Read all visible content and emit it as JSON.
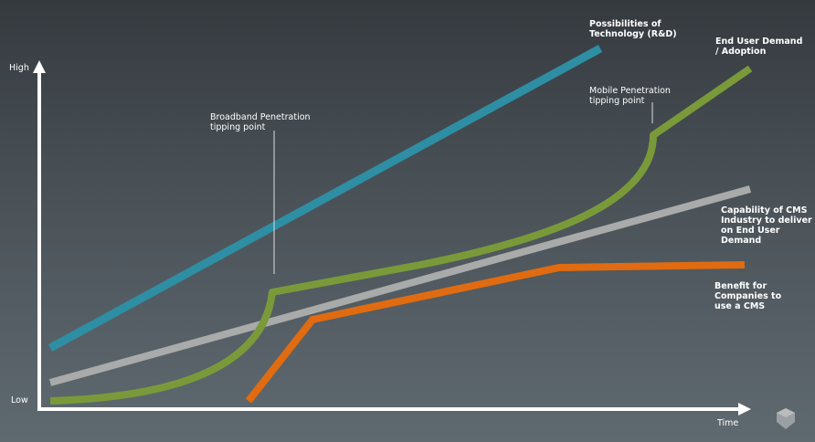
{
  "axes": {
    "y_high": "High",
    "y_low": "Low",
    "x_label": "Time"
  },
  "series": [
    {
      "label": "Possibilities of\nTechnology (R&D)",
      "color": "#2e8ea3"
    },
    {
      "label": "End User Demand\n/ Adoption",
      "color": "#7a9a3a"
    },
    {
      "label": "Capability of CMS\nIndustry to deliver\non End User Demand",
      "color": "#a9aaaa"
    },
    {
      "label": "Benefit for\nCompanies to\nuse a CMS",
      "color": "#e06b10"
    }
  ],
  "annotations": {
    "broadband": "Broadband Penetration\ntipping point",
    "mobile": "Mobile Penetration\ntipping point"
  },
  "logo": "shield-logo"
}
